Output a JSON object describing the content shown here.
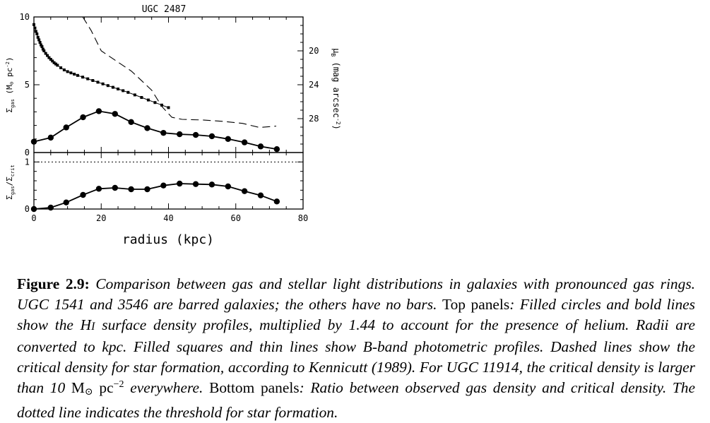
{
  "chart_data": [
    {
      "type": "line",
      "panel": "top",
      "title": "UGC 2487",
      "xlabel": "radius (kpc)",
      "ylabel_left": "Σgas (M⊙ pc⁻²)",
      "ylabel_right": "μB (mag arcsec⁻²)",
      "xlim": [
        0,
        80
      ],
      "ylim": [
        0,
        10
      ],
      "y2lim": [
        32,
        16
      ],
      "y2_reversed": true,
      "x_ticks": [
        0,
        20,
        40,
        60,
        80
      ],
      "y_ticks": [
        "0",
        "5",
        "10"
      ],
      "y2_ticks": [
        "20",
        "24",
        "28"
      ],
      "series": [
        {
          "style": "filled-circles-bold-line",
          "axis": "left",
          "x": [
            0,
            5,
            9.6,
            14.6,
            19.3,
            24.1,
            28.9,
            33.7,
            38.5,
            43.3,
            48.1,
            52.9,
            57.7,
            62.6,
            67.4,
            72.2
          ],
          "values": [
            0.8,
            1.1,
            1.85,
            2.6,
            3.05,
            2.85,
            2.25,
            1.8,
            1.45,
            1.35,
            1.3,
            1.2,
            1.0,
            0.75,
            0.45,
            0.25
          ]
        },
        {
          "style": "filled-squares-thin-line",
          "axis": "right",
          "x": [
            0,
            0.3,
            0.6,
            0.9,
            1.2,
            1.5,
            1.8,
            2.1,
            2.4,
            2.7,
            3.0,
            3.5,
            4.0,
            4.5,
            5.0,
            5.5,
            6.0,
            6.5,
            7.0,
            8.0,
            9.0,
            10.0,
            11.0,
            12.0,
            13.0,
            14.5,
            16.0,
            17.5,
            19.0,
            20.5,
            22.0,
            23.5,
            25.0,
            26.5,
            28.0,
            30.0,
            32.0,
            34.0,
            36.0,
            38.0,
            40.0
          ],
          "values": [
            16.9,
            17.3,
            17.7,
            18.0,
            18.4,
            18.7,
            19.0,
            19.3,
            19.5,
            19.8,
            20.0,
            20.3,
            20.55,
            20.8,
            21.0,
            21.2,
            21.4,
            21.55,
            21.7,
            22.0,
            22.25,
            22.45,
            22.6,
            22.75,
            22.9,
            23.1,
            23.3,
            23.5,
            23.7,
            23.9,
            24.1,
            24.3,
            24.5,
            24.7,
            24.9,
            25.2,
            25.5,
            25.8,
            26.1,
            26.4,
            26.7
          ]
        },
        {
          "style": "dashed",
          "axis": "left",
          "x": [
            14.5,
            17,
            20,
            23,
            26,
            29,
            32,
            35,
            38,
            41,
            44,
            50,
            56,
            62,
            67,
            72
          ],
          "values": [
            10,
            9.0,
            7.5,
            7.0,
            6.5,
            6.0,
            5.3,
            4.6,
            3.4,
            2.6,
            2.45,
            2.4,
            2.3,
            2.15,
            1.85,
            1.95
          ]
        }
      ]
    },
    {
      "type": "line",
      "panel": "bottom",
      "xlabel": "radius (kpc)",
      "ylabel": "Σgas/Σcrit",
      "xlim": [
        0,
        80
      ],
      "ylim": [
        0,
        1.2
      ],
      "x_ticks": [
        0,
        20,
        40,
        60,
        80
      ],
      "y_ticks": [
        "0",
        "1"
      ],
      "threshold": 1,
      "series": [
        {
          "style": "filled-circles-bold-line",
          "x": [
            0,
            5,
            9.6,
            14.6,
            19.3,
            24.1,
            28.9,
            33.7,
            38.5,
            43.3,
            48.1,
            52.9,
            57.7,
            62.6,
            67.4,
            72.2
          ],
          "values": [
            0.0,
            0.03,
            0.14,
            0.3,
            0.43,
            0.45,
            0.42,
            0.42,
            0.5,
            0.54,
            0.53,
            0.52,
            0.48,
            0.38,
            0.29,
            0.16
          ]
        }
      ]
    }
  ],
  "labels": {
    "title": "UGC 2487",
    "xlabel": "radius (kpc)",
    "ylabel_top_sym": "Σ",
    "ylabel_top_sub": "gas",
    "ylabel_top_unit": " (M",
    "ylabel_top_sun": "⊙",
    "ylabel_top_unit2": " pc",
    "ylabel_top_exp": "-2",
    "ylabel_top_close": ")",
    "ylabel_bottom_sym1": "Σ",
    "ylabel_bottom_sub1": "gas",
    "ylabel_bottom_slash": "/Σ",
    "ylabel_bottom_sub2": "crit",
    "ylabel_right_mu": "μ",
    "ylabel_right_sub": "B",
    "ylabel_right_unit": " (mag arcsec",
    "ylabel_right_exp": "-2",
    "ylabel_right_close": ")"
  },
  "caption": {
    "label": "Figure 2.9:",
    "p1": " Comparison between gas and stellar light distributions in galaxies with pronounced gas rings. UGC 1541 and 3546 are barred galaxies; the others have no bars. ",
    "top_panels": "Top panels",
    "p2": ": Filled circles and bold lines show the H",
    "hi_numeral": "I",
    "p3": " surface density profiles, multiplied by 1.44 to account for the presence of helium. Radii are converted to kpc. Filled squares and thin lines show B-band photometric profiles. Dashed lines show the critical density for star formation, according to Kennicutt (1989). For UGC 11914, the critical density is larger than 10 ",
    "unit_m": "M",
    "unit_sun": "⊙",
    "unit_pc": " pc",
    "unit_exp": "−2",
    "p4": " everywhere. ",
    "bottom_panels": "Bottom panels",
    "p5": ": Ratio between observed gas density and critical density. The dotted line indicates the threshold for star formation."
  }
}
